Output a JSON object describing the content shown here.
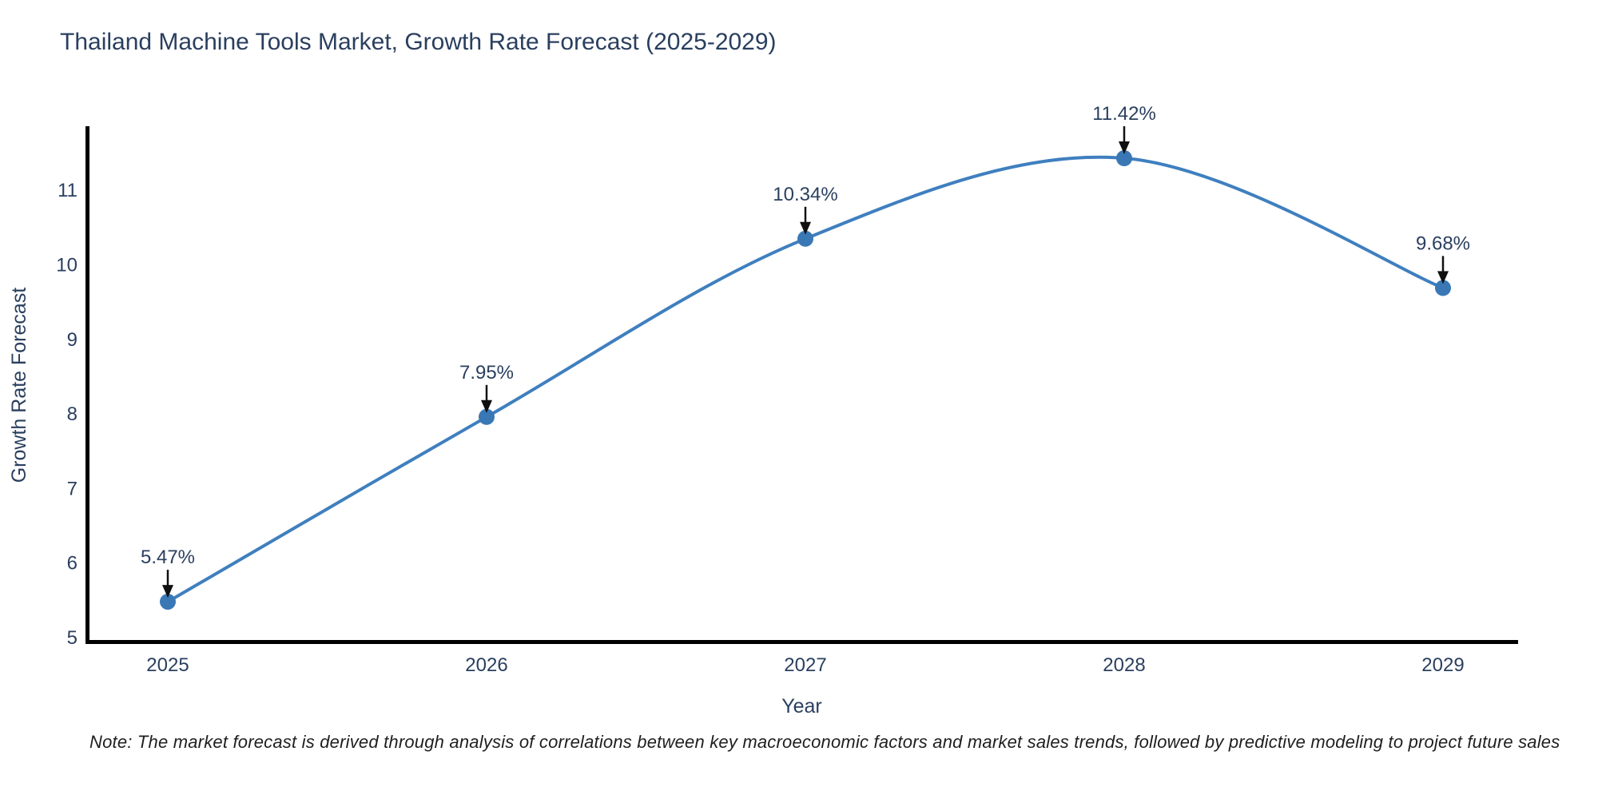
{
  "title": "Thailand Machine Tools Market, Growth Rate Forecast (2025-2029)",
  "note": "Note: The market forecast is derived through analysis of correlations between key macroeconomic factors and market sales trends, followed by predictive modeling to project future sales",
  "chart_data": {
    "type": "line",
    "title": "Thailand Machine Tools Market, Growth Rate Forecast (2025-2029)",
    "xlabel": "Year",
    "ylabel": "Growth Rate Forecast",
    "categories": [
      "2025",
      "2026",
      "2027",
      "2028",
      "2029"
    ],
    "values": [
      5.47,
      7.95,
      10.34,
      11.42,
      9.68
    ],
    "point_labels": [
      "5.47%",
      "7.95%",
      "10.34%",
      "11.42%",
      "9.68%"
    ],
    "series_name": "Growth Rate Forecast",
    "line_shape": "spline",
    "markers": true,
    "annotations_arrows": true,
    "grid": false,
    "legend": "none",
    "ylim": [
      5,
      12
    ],
    "yticks": [
      5,
      6,
      7,
      8,
      9,
      10,
      11
    ],
    "colors": {
      "line": "#3f7fbf",
      "marker": "#3a78b5",
      "axis_line": "#000000",
      "text": "#2a3f5f",
      "arrow": "#101010"
    }
  }
}
